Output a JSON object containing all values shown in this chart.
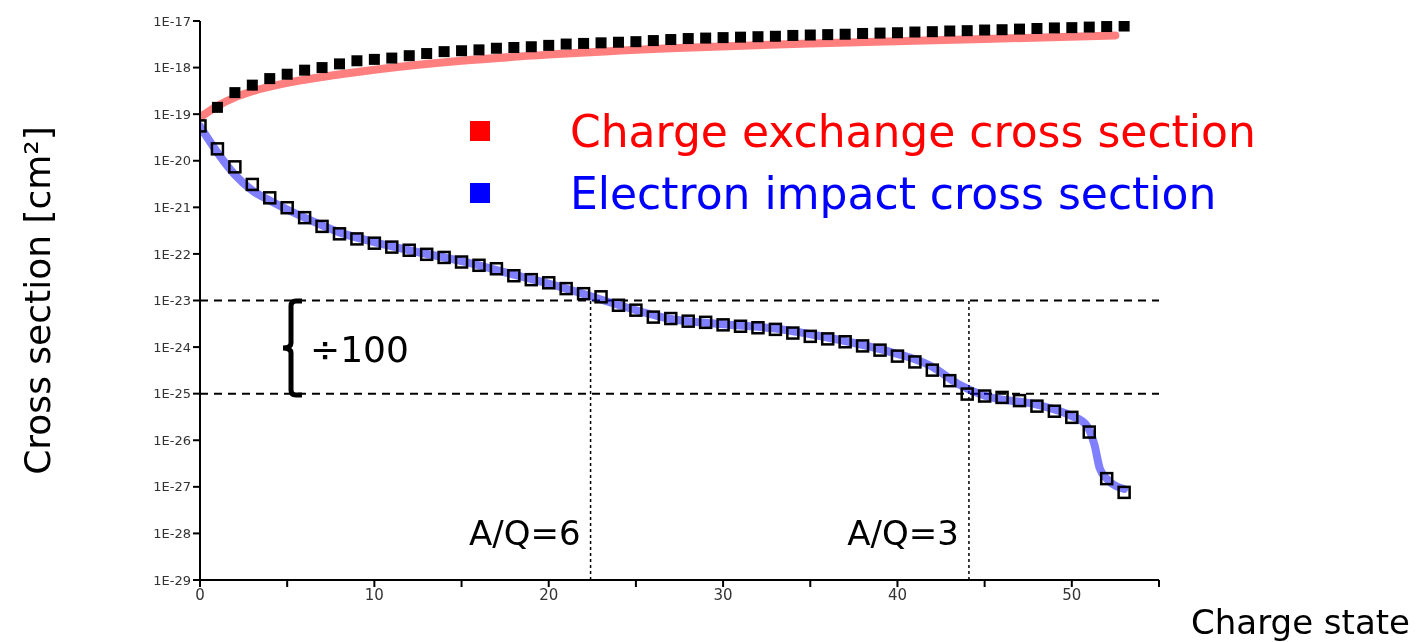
{
  "chart_data": {
    "type": "scatter",
    "xlabel": "Charge state",
    "ylabel": "Cross section [cm²]",
    "log": "y",
    "legend": "top right",
    "marker": "square",
    "xlim": [
      0,
      55
    ],
    "xticks": [
      0,
      {
        "value": 5,
        "label": null
      },
      10,
      {
        "value": 15,
        "label": null
      },
      20,
      {
        "value": 25,
        "label": null
      },
      30,
      {
        "value": 35,
        "label": null
      },
      40,
      {
        "value": 45,
        "label": null
      },
      50,
      {
        "value": 55,
        "label": null
      }
    ],
    "ylim": [
      1e-29,
      1e-17
    ],
    "yticks": [
      {
        "value": 1e-29,
        "label": "1E-29"
      },
      {
        "value": 1e-28,
        "label": "1E-28"
      },
      {
        "value": 1e-27,
        "label": "1E-27"
      },
      {
        "value": 1e-26,
        "label": "1E-26"
      },
      {
        "value": 1e-25,
        "label": "1E-25"
      },
      {
        "value": 1e-24,
        "label": "1E-24"
      },
      {
        "value": 1e-23,
        "label": "1E-23"
      },
      {
        "value": 1e-22,
        "label": "1E-22"
      },
      {
        "value": 1e-21,
        "label": "1E-21"
      },
      {
        "value": 1e-20,
        "label": "1E-20"
      },
      {
        "value": 1e-19,
        "label": "1E-19"
      },
      {
        "value": 1e-18,
        "label": "1E-18"
      },
      {
        "value": 1e-17,
        "label": "1E-17"
      }
    ],
    "series": [
      {
        "name": "Charge exchange cross section",
        "type": "line",
        "marker": "none",
        "color": "#ff0000",
        "x": [
          0,
          1,
          2,
          3,
          5,
          7,
          10,
          15,
          20,
          27,
          35,
          45,
          52.5
        ],
        "values": [
          8.5e-20,
          1.5e-19,
          2.3e-19,
          3.1e-19,
          4.7e-19,
          6.3e-19,
          9e-19,
          1.4e-18,
          1.9e-18,
          2.6e-18,
          3.3e-18,
          4.1e-18,
          4.9e-18
        ]
      },
      {
        "name": "Electron impact cross section",
        "type": "line",
        "marker": "none",
        "color": "#0000ff",
        "x": [
          0,
          1,
          2,
          3,
          4,
          5,
          6,
          8,
          10,
          12,
          15,
          18,
          21,
          24,
          27,
          30,
          33,
          36,
          39,
          42,
          43.5,
          45,
          48,
          50,
          50.8,
          51.3,
          51.6,
          52,
          53
        ],
        "values": [
          5.5e-20,
          1.5e-20,
          5e-21,
          2.3e-21,
          1.4e-21,
          9e-22,
          6e-22,
          2.9e-22,
          1.8e-22,
          1.2e-22,
          7e-23,
          3.6e-23,
          1.8e-23,
          8e-24,
          4e-24,
          3.1e-24,
          2.5e-24,
          1.6e-24,
          9e-25,
          3.8e-25,
          1.6e-25,
          9e-26,
          5.8e-26,
          3.3e-26,
          2.2e-26,
          8e-27,
          2.5e-27,
          1.5e-27,
          9e-28
        ]
      },
      {
        "color": "#000000",
        "x": [
          1,
          2,
          3,
          4,
          5,
          6,
          7,
          8,
          9,
          10,
          11,
          12,
          13,
          14,
          15,
          16,
          17,
          18,
          19,
          20,
          21,
          22,
          23,
          24,
          25,
          26,
          27,
          28,
          29,
          30,
          31,
          32,
          33,
          34,
          35,
          36,
          37,
          38,
          39,
          40,
          41,
          42,
          43,
          44,
          45,
          46,
          47,
          48,
          49,
          50,
          51,
          52,
          53
        ],
        "values": [
          1.4e-19,
          2.9e-19,
          4.2e-19,
          5.8e-19,
          7.2e-19,
          8.8e-19,
          1e-18,
          1.2e-18,
          1.4e-18,
          1.5e-18,
          1.6e-18,
          1.8e-18,
          2e-18,
          2.2e-18,
          2.3e-18,
          2.4e-18,
          2.6e-18,
          2.7e-18,
          2.8e-18,
          3e-18,
          3.2e-18,
          3.3e-18,
          3.4e-18,
          3.5e-18,
          3.6e-18,
          3.8e-18,
          4e-18,
          4.2e-18,
          4.3e-18,
          4.4e-18,
          4.5e-18,
          4.6e-18,
          4.7e-18,
          4.9e-18,
          5e-18,
          5.1e-18,
          5.2e-18,
          5.4e-18,
          5.5e-18,
          5.6e-18,
          5.8e-18,
          5.9e-18,
          6.1e-18,
          6.2e-18,
          6.4e-18,
          6.5e-18,
          6.7e-18,
          6.9e-18,
          7.1e-18,
          7.2e-18,
          7.4e-18,
          7.6e-18,
          7.8e-18
        ]
      },
      {
        "color": "#000000",
        "x": [
          0,
          1,
          2,
          3,
          4,
          5,
          6,
          7,
          8,
          9,
          10,
          11,
          12,
          13,
          14,
          15,
          16,
          17,
          18,
          19,
          20,
          21,
          22,
          23,
          24,
          25,
          26,
          27,
          28,
          29,
          30,
          31,
          32,
          33,
          34,
          35,
          36,
          37,
          38,
          39,
          40,
          41,
          42,
          43,
          44,
          45,
          46,
          47,
          48,
          49,
          50,
          51,
          52,
          53
        ],
        "values": [
          5.6e-20,
          1.8e-20,
          7.4e-21,
          3.1e-21,
          1.6e-21,
          9.8e-22,
          6e-22,
          3.9e-22,
          2.7e-22,
          2.1e-22,
          1.7e-22,
          1.4e-22,
          1.2e-22,
          9.8e-23,
          8.4e-23,
          6.7e-23,
          5.7e-23,
          4.8e-23,
          3.4e-23,
          2.8e-23,
          2.4e-23,
          1.8e-23,
          1.4e-23,
          1.2e-23,
          7.9e-24,
          6.2e-24,
          4.4e-24,
          4.1e-24,
          3.6e-24,
          3.4e-24,
          3e-24,
          2.8e-24,
          2.6e-24,
          2.4e-24,
          2e-24,
          1.7e-24,
          1.5e-24,
          1.3e-24,
          1.06e-24,
          8.6e-25,
          6.4e-25,
          4.8e-25,
          3.2e-25,
          1.9e-25,
          9.8e-26,
          8.9e-26,
          8.3e-26,
          7.1e-26,
          5.4e-26,
          4.2e-26,
          3.1e-26,
          1.5e-26,
          1.5e-27,
          7.6e-28
        ]
      }
    ],
    "ref_lines": [
      {
        "axis": "y",
        "value": 1e-23,
        "line_style": "dashed",
        "color": "#000000"
      },
      {
        "axis": "y",
        "value": 1e-25,
        "line_style": "dashed",
        "color": "#000000"
      },
      {
        "axis": "x",
        "value": 22.4,
        "line_style": "dotted",
        "color": "#000000"
      },
      {
        "axis": "x",
        "value": 44.1,
        "line_style": "dotted",
        "color": "#000000"
      }
    ],
    "annotations": [
      "÷100",
      {
        "text": "A/Q=6",
        "x": 22.4,
        "y": 1e-28
      },
      {
        "text": "A/Q=3",
        "x": 44.1,
        "y": 1e-28
      }
    ]
  }
}
